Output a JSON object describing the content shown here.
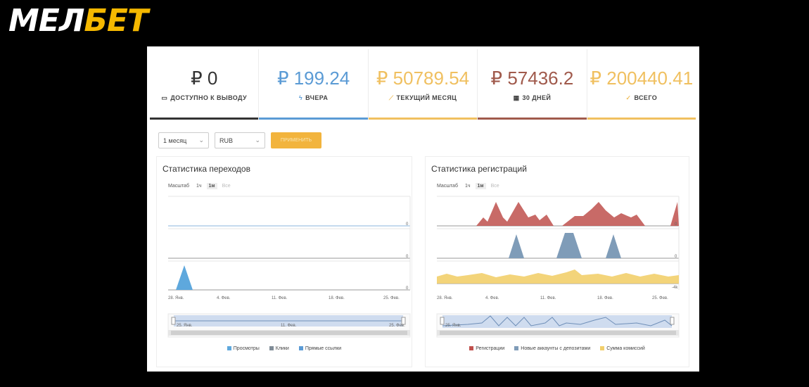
{
  "logo": {
    "part1": "МЕЛ",
    "part2": "БЕТ"
  },
  "stats": [
    {
      "value": "₽ 0",
      "label": "ДОСТУПНО К ВЫВОДУ",
      "icon": "wallet-icon",
      "glyph": "▭",
      "color": "#333333",
      "accent": "#333333"
    },
    {
      "value": "₽ 199.24",
      "label": "ВЧЕРА",
      "icon": "bolt-icon",
      "glyph": "ϟ",
      "color": "#5b9bd5",
      "accent": "#5b9bd5"
    },
    {
      "value": "₽ 50789.54",
      "label": "ТЕКУЩИЙ МЕСЯЦ",
      "icon": "trend-icon",
      "glyph": "⟋",
      "color": "#f0c060",
      "accent": "#f0c060"
    },
    {
      "value": "₽ 57436.2",
      "label": "30 ДНЕЙ",
      "icon": "calendar-icon",
      "glyph": "▦",
      "color": "#a05a4c",
      "accent": "#a05a4c"
    },
    {
      "value": "₽ 200440.41",
      "label": "ВСЕГО",
      "icon": "check-icon",
      "glyph": "✓",
      "color": "#f0c060",
      "accent": "#f0c060"
    }
  ],
  "filters": {
    "period": "1 месяц",
    "currency": "RUB",
    "apply_label": "ПРИМЕНИТЬ"
  },
  "charts": {
    "left": {
      "title": "Статистика переходов",
      "scale_label": "Масштаб",
      "scale_options": [
        "1ч",
        "1м",
        "Все"
      ],
      "zero_label": "0",
      "x_ticks": [
        "28. Янв.",
        "4. Фев.",
        "11. Фев.",
        "18. Фев.",
        "25. Фев."
      ],
      "nav_ticks": [
        "25. Янв.",
        "11. Фев.",
        "25. Фев."
      ],
      "legend": [
        {
          "label": "Просмотры",
          "color": "#5ea8dd"
        },
        {
          "label": "Клики",
          "color": "#7f8c97"
        },
        {
          "label": "Прямые ссылки",
          "color": "#5b9bd5"
        }
      ]
    },
    "right": {
      "title": "Статистика регистраций",
      "scale_label": "Масштаб",
      "scale_options": [
        "1ч",
        "1м",
        "Все"
      ],
      "zero_label": "0",
      "neg_label": "-4k",
      "x_ticks": [
        "28. Янв.",
        "4. Фев.",
        "11. Фев.",
        "18. Фев.",
        "25. Фев."
      ],
      "nav_ticks": [
        "25. Янв."
      ],
      "legend": [
        {
          "label": "Регистрации",
          "color": "#c0504d"
        },
        {
          "label": "Новые аккаунты с депозитами",
          "color": "#7f9cb8"
        },
        {
          "label": "Сумма комиссий",
          "color": "#f2cf6b"
        }
      ]
    }
  }
}
